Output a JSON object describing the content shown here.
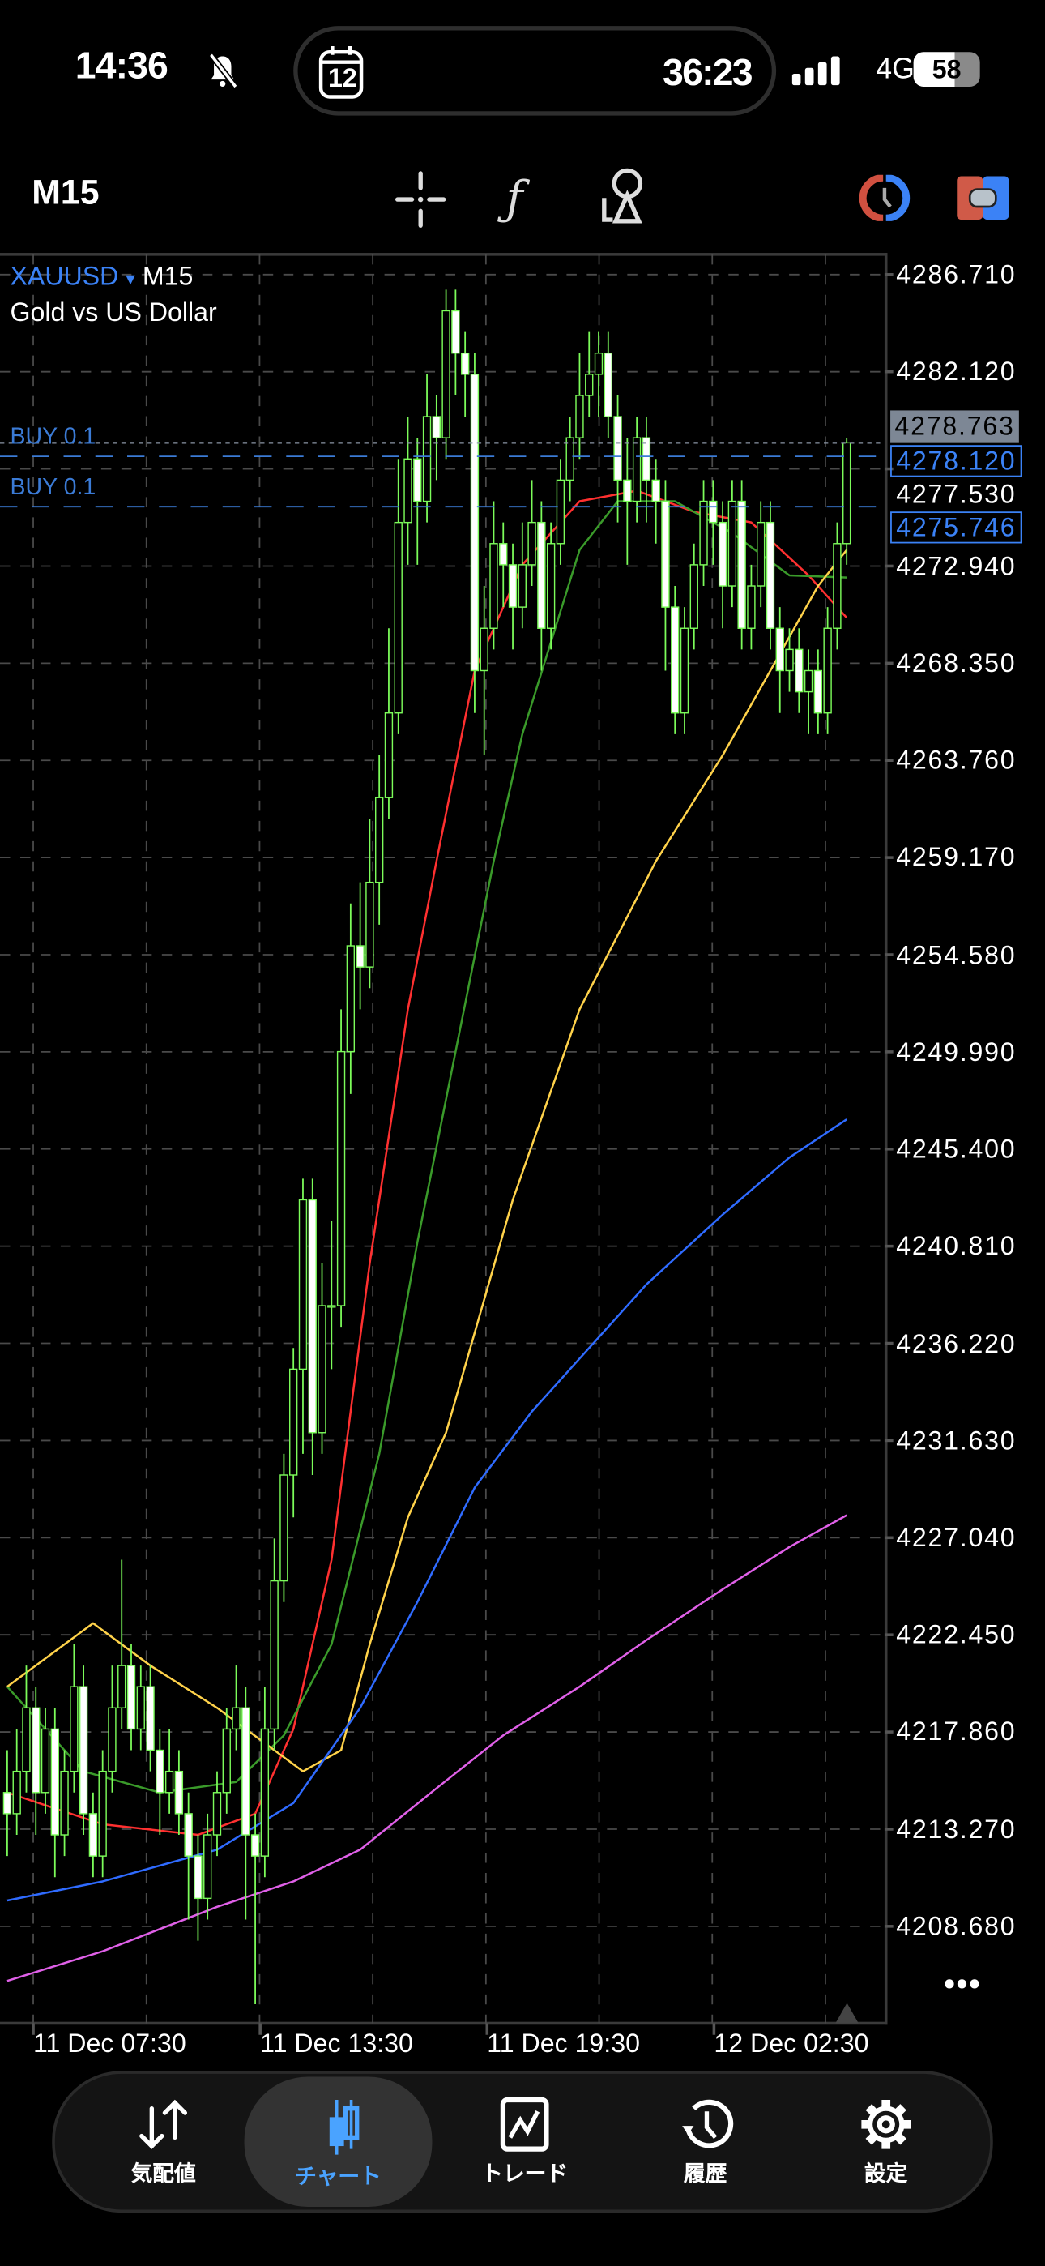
{
  "status_bar": {
    "time": "14:36",
    "calendar_day": "12",
    "timer": "36:23",
    "network": "4G",
    "battery": "58"
  },
  "toolbar": {
    "timeframe": "M15",
    "icons": [
      "crosshair-icon",
      "indicators-icon",
      "objects-icon",
      "one-click-trading-icon",
      "trade-toggle-icon"
    ]
  },
  "chart_header": {
    "symbol": "XAUUSD",
    "dropdown": "▾",
    "timeframe": "M15",
    "description": "Gold vs US Dollar"
  },
  "orders": [
    {
      "label": "BUY 0.1",
      "price": 4278.12,
      "price_text": "4278.120"
    },
    {
      "label": "BUY 0.1",
      "price": 4275.746,
      "price_text": "4275.746"
    }
  ],
  "bid": {
    "price": 4278.763,
    "text": "4278.763"
  },
  "colors": {
    "accent": "#3b82f6",
    "candle": "#7CFC5A",
    "ma_red": "#ff3030",
    "ma_green": "#3a9a2a",
    "ma_yellow": "#ffd24a",
    "ma_blue": "#2f6bff",
    "ma_magenta": "#e060e8",
    "order_line": "#3b7bd6",
    "bid_line": "#8a95a5"
  },
  "more_label": "•••",
  "chart_data": {
    "type": "candlestick",
    "y_ticks": [
      "4286.710",
      "4282.120",
      "4277.530",
      "4272.940",
      "4268.350",
      "4263.760",
      "4259.170",
      "4254.580",
      "4249.990",
      "4245.400",
      "4240.810",
      "4236.220",
      "4231.630",
      "4227.040",
      "4222.450",
      "4217.860",
      "4213.270",
      "4208.680"
    ],
    "ylim": [
      4204.1,
      4287.7
    ],
    "x_labels": [
      {
        "text": "11 Dec 07:30",
        "index": 3
      },
      {
        "text": "11 Dec 13:30",
        "index": 27
      },
      {
        "text": "11 Dec 19:30",
        "index": 51
      },
      {
        "text": "12 Dec 02:30",
        "index": 75
      }
    ],
    "grid": true,
    "candles": [
      [
        4215,
        4217,
        4212,
        4214
      ],
      [
        4214,
        4218,
        4213,
        4216
      ],
      [
        4216,
        4221,
        4215,
        4219
      ],
      [
        4219,
        4220,
        4213,
        4215
      ],
      [
        4215,
        4219,
        4214,
        4218
      ],
      [
        4218,
        4219,
        4211,
        4213
      ],
      [
        4213,
        4217,
        4212,
        4216
      ],
      [
        4216,
        4222,
        4215,
        4220
      ],
      [
        4220,
        4221,
        4213,
        4214
      ],
      [
        4214,
        4215,
        4211,
        4212
      ],
      [
        4212,
        4217,
        4211,
        4216
      ],
      [
        4216,
        4221,
        4215,
        4219
      ],
      [
        4219,
        4226,
        4218,
        4221
      ],
      [
        4221,
        4222,
        4217,
        4218
      ],
      [
        4218,
        4221,
        4217,
        4220
      ],
      [
        4220,
        4221,
        4216,
        4217
      ],
      [
        4217,
        4218,
        4213,
        4215
      ],
      [
        4215,
        4218,
        4214,
        4216
      ],
      [
        4216,
        4217,
        4213,
        4214
      ],
      [
        4214,
        4215,
        4209,
        4212
      ],
      [
        4212,
        4213,
        4208,
        4210
      ],
      [
        4210,
        4214,
        4209,
        4213
      ],
      [
        4213,
        4216,
        4212,
        4215
      ],
      [
        4215,
        4219,
        4214,
        4218
      ],
      [
        4218,
        4221,
        4217,
        4219
      ],
      [
        4219,
        4220,
        4209,
        4213
      ],
      [
        4213,
        4214,
        4205,
        4212
      ],
      [
        4212,
        4220,
        4211,
        4218
      ],
      [
        4218,
        4227,
        4217,
        4225
      ],
      [
        4225,
        4231,
        4224,
        4230
      ],
      [
        4230,
        4236,
        4228,
        4235
      ],
      [
        4235,
        4244,
        4231,
        4243
      ],
      [
        4243,
        4244,
        4230,
        4232
      ],
      [
        4232,
        4240,
        4231,
        4238
      ],
      [
        4238,
        4242,
        4235,
        4238
      ],
      [
        4238,
        4252,
        4237,
        4250
      ],
      [
        4250,
        4257,
        4248,
        4255
      ],
      [
        4255,
        4258,
        4252,
        4254
      ],
      [
        4254,
        4261,
        4253,
        4258
      ],
      [
        4258,
        4264,
        4256,
        4262
      ],
      [
        4262,
        4270,
        4261,
        4266
      ],
      [
        4266,
        4278,
        4265,
        4275
      ],
      [
        4275,
        4280,
        4273,
        4278
      ],
      [
        4278,
        4279,
        4273,
        4276
      ],
      [
        4276,
        4282,
        4275,
        4280
      ],
      [
        4280,
        4281,
        4277,
        4279
      ],
      [
        4279,
        4286,
        4278,
        4285
      ],
      [
        4285,
        4286,
        4281,
        4283
      ],
      [
        4283,
        4284,
        4280,
        4282
      ],
      [
        4282,
        4283,
        4266,
        4268
      ],
      [
        4268,
        4272,
        4264,
        4270
      ],
      [
        4270,
        4276,
        4269,
        4274
      ],
      [
        4274,
        4275,
        4271,
        4273
      ],
      [
        4273,
        4274,
        4269,
        4271
      ],
      [
        4271,
        4275,
        4270,
        4273
      ],
      [
        4273,
        4277,
        4272,
        4275
      ],
      [
        4275,
        4276,
        4268,
        4270
      ],
      [
        4270,
        4275,
        4269,
        4274
      ],
      [
        4274,
        4278,
        4273,
        4277
      ],
      [
        4277,
        4280,
        4276,
        4279
      ],
      [
        4279,
        4283,
        4278,
        4281
      ],
      [
        4281,
        4284,
        4280,
        4282
      ],
      [
        4282,
        4284,
        4280,
        4283
      ],
      [
        4283,
        4284,
        4279,
        4280
      ],
      [
        4280,
        4281,
        4275,
        4277
      ],
      [
        4277,
        4279,
        4273,
        4276
      ],
      [
        4276,
        4280,
        4275,
        4279
      ],
      [
        4279,
        4280,
        4275,
        4277
      ],
      [
        4277,
        4278,
        4274,
        4276
      ],
      [
        4276,
        4277,
        4268,
        4271
      ],
      [
        4271,
        4272,
        4265,
        4266
      ],
      [
        4266,
        4271,
        4265,
        4270
      ],
      [
        4270,
        4274,
        4269,
        4273
      ],
      [
        4273,
        4277,
        4272,
        4276
      ],
      [
        4276,
        4277,
        4273,
        4275
      ],
      [
        4275,
        4276,
        4270,
        4272
      ],
      [
        4272,
        4277,
        4271,
        4276
      ],
      [
        4276,
        4277,
        4269,
        4270
      ],
      [
        4270,
        4273,
        4269,
        4272
      ],
      [
        4272,
        4276,
        4271,
        4275
      ],
      [
        4275,
        4276,
        4269,
        4270
      ],
      [
        4270,
        4271,
        4266,
        4268
      ],
      [
        4268,
        4270,
        4267,
        4269
      ],
      [
        4269,
        4270,
        4266,
        4267
      ],
      [
        4267,
        4269,
        4265,
        4268
      ],
      [
        4268,
        4269,
        4265,
        4266
      ],
      [
        4266,
        4271,
        4265,
        4270
      ],
      [
        4270,
        4275,
        4269,
        4274
      ],
      [
        4274,
        4279,
        4273,
        4278.763
      ]
    ],
    "moving_averages": [
      {
        "color": "#ff3030",
        "points": [
          [
            0,
            4215
          ],
          [
            10,
            4213.5
          ],
          [
            20,
            4213
          ],
          [
            26,
            4214
          ],
          [
            30,
            4218
          ],
          [
            34,
            4226
          ],
          [
            38,
            4240
          ],
          [
            42,
            4252
          ],
          [
            45,
            4259
          ],
          [
            49,
            4268
          ],
          [
            54,
            4273
          ],
          [
            60,
            4276
          ],
          [
            66,
            4276.5
          ],
          [
            72,
            4275.5
          ],
          [
            78,
            4275
          ],
          [
            84,
            4272.5
          ],
          [
            88,
            4270.5
          ]
        ]
      },
      {
        "color": "#3a9a2a",
        "points": [
          [
            0,
            4220
          ],
          [
            8,
            4216
          ],
          [
            16,
            4215
          ],
          [
            24,
            4215.5
          ],
          [
            29,
            4217.7
          ],
          [
            34,
            4222
          ],
          [
            39,
            4231
          ],
          [
            43,
            4241
          ],
          [
            47,
            4250
          ],
          [
            51,
            4259
          ],
          [
            54,
            4265
          ],
          [
            60,
            4273.7
          ],
          [
            64,
            4276
          ],
          [
            70,
            4276
          ],
          [
            76,
            4274.5
          ],
          [
            82,
            4272.5
          ],
          [
            88,
            4272.4
          ]
        ]
      },
      {
        "color": "#ffd24a",
        "points": [
          [
            0,
            4220
          ],
          [
            9,
            4223
          ],
          [
            15,
            4221
          ],
          [
            22,
            4219
          ],
          [
            28,
            4217
          ],
          [
            31,
            4216
          ],
          [
            35,
            4217
          ],
          [
            38,
            4222
          ],
          [
            42,
            4228
          ],
          [
            46,
            4232
          ],
          [
            53,
            4243
          ],
          [
            60,
            4252
          ],
          [
            68,
            4259
          ],
          [
            75,
            4264
          ],
          [
            80,
            4268
          ],
          [
            85,
            4272
          ],
          [
            88,
            4273.7
          ]
        ]
      },
      {
        "color": "#2f6bff",
        "points": [
          [
            0,
            4209.9
          ],
          [
            10,
            4210.8
          ],
          [
            22,
            4212.3
          ],
          [
            30,
            4214.5
          ],
          [
            37,
            4219
          ],
          [
            43,
            4224
          ],
          [
            49,
            4229.4
          ],
          [
            55,
            4233
          ],
          [
            60,
            4235.5
          ],
          [
            67,
            4239
          ],
          [
            75,
            4242.3
          ],
          [
            82,
            4245
          ],
          [
            88,
            4246.8
          ]
        ]
      },
      {
        "color": "#e060e8",
        "points": [
          [
            0,
            4206.1
          ],
          [
            10,
            4207.5
          ],
          [
            22,
            4209.6
          ],
          [
            30,
            4210.8
          ],
          [
            37,
            4212.3
          ],
          [
            45,
            4215.2
          ],
          [
            52,
            4217.7
          ],
          [
            60,
            4220
          ],
          [
            67,
            4222.2
          ],
          [
            75,
            4224.6
          ],
          [
            82,
            4226.6
          ],
          [
            88,
            4228.1
          ]
        ]
      }
    ]
  },
  "nav": [
    {
      "label": "気配値",
      "icon": "quotes-icon"
    },
    {
      "label": "チャート",
      "icon": "chart-icon",
      "active": true
    },
    {
      "label": "トレード",
      "icon": "trade-icon"
    },
    {
      "label": "履歴",
      "icon": "history-icon"
    },
    {
      "label": "設定",
      "icon": "settings-icon"
    }
  ]
}
